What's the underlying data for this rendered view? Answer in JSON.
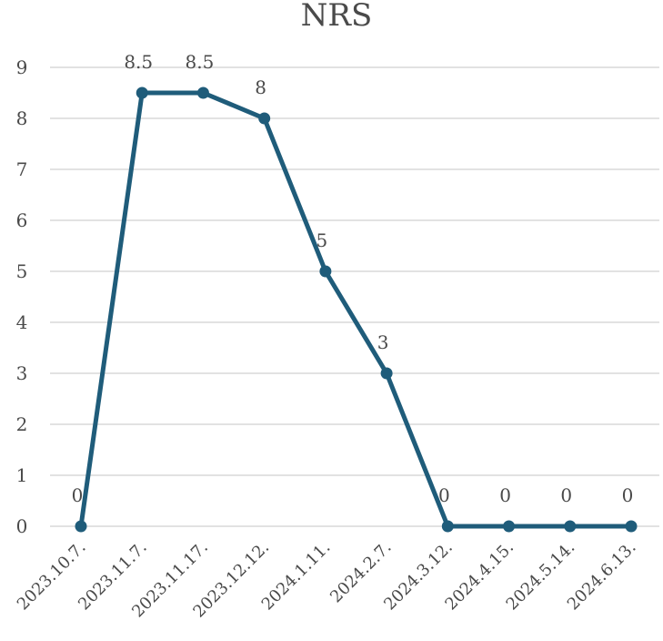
{
  "chart_data": {
    "type": "line",
    "title": "NRS",
    "categories": [
      "2023.10.7.",
      "2023.11.7.",
      "2023.11.17.",
      "2023.12.12.",
      "2024.1.11.",
      "2024.2.7.",
      "2024.3.12.",
      "2024.4.15.",
      "2024.5.14.",
      "2024.6.13."
    ],
    "values": [
      0,
      8.5,
      8.5,
      8,
      5,
      3,
      0,
      0,
      0,
      0
    ],
    "data_labels": [
      "0",
      "8.5",
      "8.5",
      "8",
      "5",
      "3",
      "0",
      "0",
      "0",
      "0"
    ],
    "y_ticks": [
      "0",
      "1",
      "2",
      "3",
      "4",
      "5",
      "6",
      "7",
      "8",
      "9"
    ],
    "ylim": [
      0,
      9
    ],
    "grid": true,
    "line_color": "#1f5c7a",
    "grid_color": "#d9d9d9",
    "text_color": "#4a4a4a"
  }
}
